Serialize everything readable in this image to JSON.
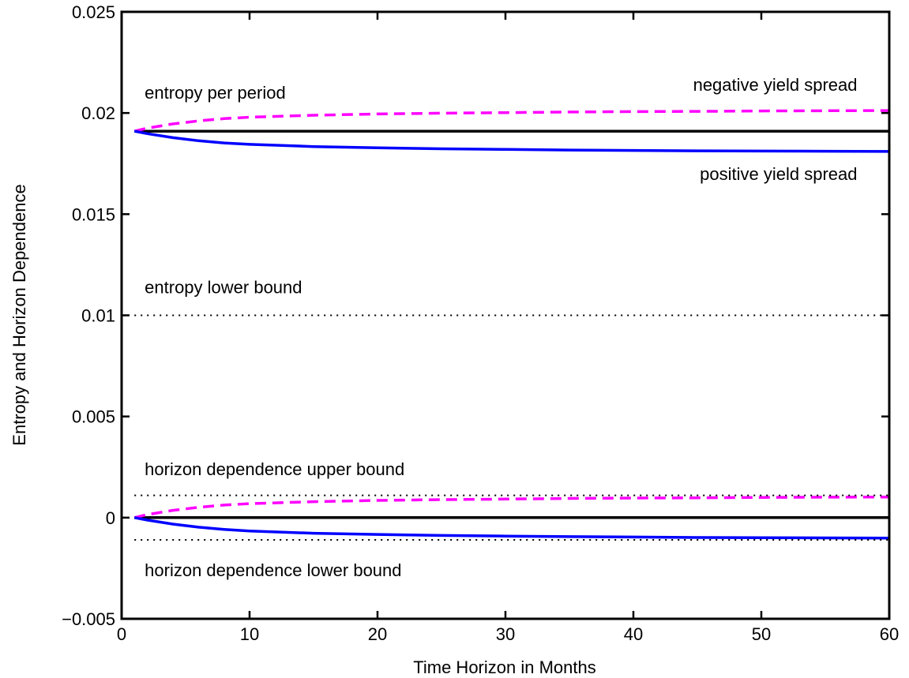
{
  "chart_data": {
    "type": "line",
    "title": "",
    "xlabel": "Time Horizon in Months",
    "ylabel": "Entropy and Horizon Dependence",
    "xlim": [
      0,
      60
    ],
    "ylim": [
      -0.005,
      0.025
    ],
    "xticks": [
      0,
      10,
      20,
      30,
      40,
      50,
      60
    ],
    "xtick_labels": [
      "0",
      "10",
      "20",
      "30",
      "40",
      "50",
      "60"
    ],
    "yticks": [
      -0.005,
      0,
      0.005,
      0.01,
      0.015,
      0.02,
      0.025
    ],
    "ytick_labels": [
      "−0.005",
      "0",
      "0.005",
      "0.01",
      "0.015",
      "0.02",
      "0.025"
    ],
    "grid": false,
    "legend": "none",
    "series": [
      {
        "color": "#000000",
        "style": "solid",
        "x": [
          1,
          60
        ],
        "y": [
          0.0191,
          0.0191
        ]
      },
      {
        "color": "#ff00ff",
        "style": "dashed",
        "x": [
          1,
          2,
          4,
          6,
          8,
          10,
          15,
          20,
          25,
          30,
          35,
          40,
          45,
          50,
          55,
          60
        ],
        "y": [
          0.0191,
          0.01925,
          0.01946,
          0.01961,
          0.01972,
          0.01979,
          0.01989,
          0.01995,
          0.01999,
          0.02002,
          0.02005,
          0.02007,
          0.02008,
          0.0201,
          0.02011,
          0.02012
        ]
      },
      {
        "color": "#0000ff",
        "style": "solid",
        "x": [
          1,
          2,
          4,
          6,
          8,
          10,
          15,
          20,
          25,
          30,
          35,
          40,
          45,
          50,
          55,
          60
        ],
        "y": [
          0.0191,
          0.01898,
          0.01878,
          0.01863,
          0.01852,
          0.01845,
          0.01834,
          0.01828,
          0.01823,
          0.0182,
          0.01817,
          0.01815,
          0.01813,
          0.01812,
          0.01811,
          0.0181
        ]
      },
      {
        "color": "#000000",
        "style": "dotted",
        "x": [
          1,
          60
        ],
        "y": [
          0.01,
          0.01
        ]
      },
      {
        "color": "#000000",
        "style": "solid",
        "x": [
          1,
          60
        ],
        "y": [
          0,
          0
        ]
      },
      {
        "color": "#ff00ff",
        "style": "dashed",
        "x": [
          1,
          2,
          4,
          6,
          8,
          10,
          15,
          20,
          25,
          30,
          35,
          40,
          45,
          50,
          55,
          60
        ],
        "y": [
          0,
          0.00015,
          0.00036,
          0.00051,
          0.00062,
          0.00069,
          0.00079,
          0.00085,
          0.00089,
          0.00092,
          0.00095,
          0.00097,
          0.00098,
          0.001,
          0.00101,
          0.00102
        ]
      },
      {
        "color": "#0000ff",
        "style": "solid",
        "x": [
          1,
          2,
          4,
          6,
          8,
          10,
          15,
          20,
          25,
          30,
          35,
          40,
          45,
          50,
          55,
          60
        ],
        "y": [
          0,
          -0.00012,
          -0.00032,
          -0.00047,
          -0.00058,
          -0.00066,
          -0.00077,
          -0.00083,
          -0.00088,
          -0.00091,
          -0.00094,
          -0.00096,
          -0.00098,
          -0.00099,
          -0.001,
          -0.00101
        ]
      },
      {
        "color": "#000000",
        "style": "dotted",
        "x": [
          1,
          60
        ],
        "y": [
          0.0011,
          0.0011
        ]
      },
      {
        "color": "#000000",
        "style": "dotted",
        "x": [
          1,
          60
        ],
        "y": [
          -0.0011,
          -0.0011
        ]
      }
    ],
    "annotations": [
      {
        "text": "entropy per period",
        "x": 1.8,
        "y": 0.0207,
        "anchor": "start"
      },
      {
        "text": "negative yield spread",
        "x": 57.5,
        "y": 0.0211,
        "anchor": "end"
      },
      {
        "text": "positive yield spread",
        "x": 57.5,
        "y": 0.0167,
        "anchor": "end"
      },
      {
        "text": "entropy lower bound",
        "x": 1.8,
        "y": 0.0111,
        "anchor": "start"
      },
      {
        "text": "horizon dependence upper bound",
        "x": 1.8,
        "y": 0.0021,
        "anchor": "start"
      },
      {
        "text": "horizon dependence lower bound",
        "x": 1.8,
        "y": -0.0029,
        "anchor": "start"
      }
    ]
  }
}
